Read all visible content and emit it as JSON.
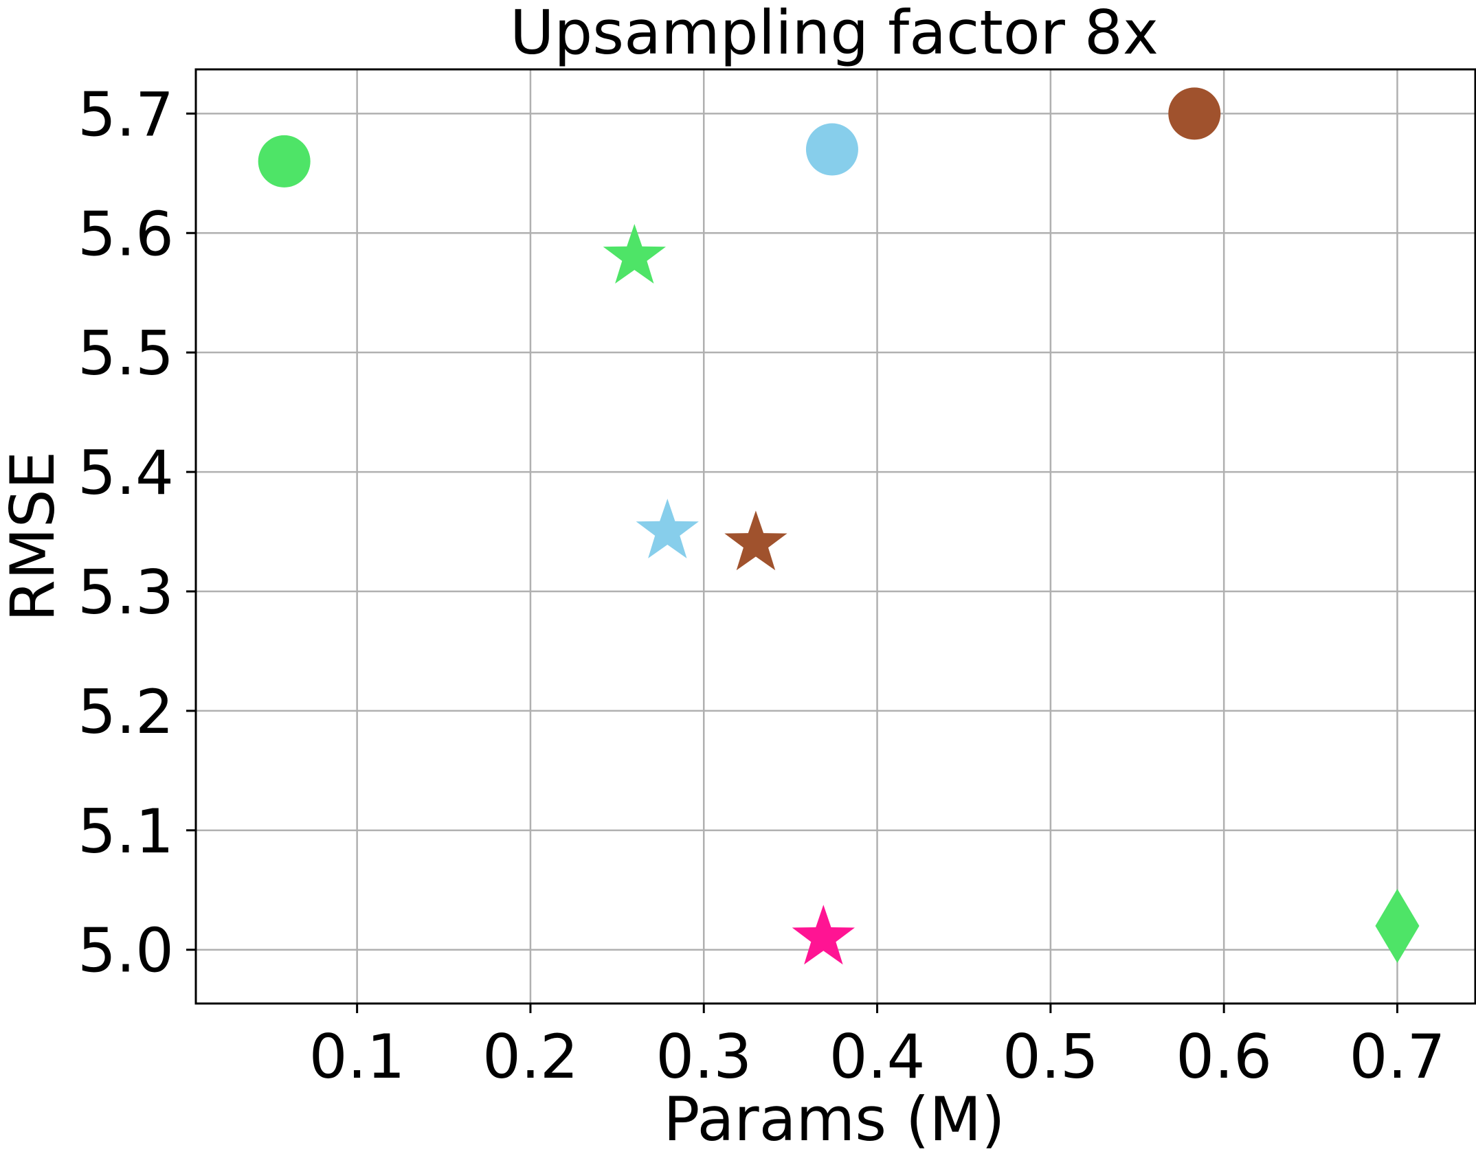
{
  "chart_data": {
    "type": "scatter",
    "title": "Upsampling factor 8x",
    "xlabel": "Params (M)",
    "ylabel": "RMSE",
    "xlim": [
      0.007,
      0.745
    ],
    "ylim": [
      4.955,
      5.737
    ],
    "xticks": [
      0.1,
      0.2,
      0.3,
      0.4,
      0.5,
      0.6,
      0.7
    ],
    "xtick_labels": [
      "0.1",
      "0.2",
      "0.3",
      "0.4",
      "0.5",
      "0.6",
      "0.7"
    ],
    "yticks": [
      5.0,
      5.1,
      5.2,
      5.3,
      5.4,
      5.5,
      5.6,
      5.7
    ],
    "ytick_labels": [
      "5.0",
      "5.1",
      "5.2",
      "5.3",
      "5.4",
      "5.5",
      "5.6",
      "5.7"
    ],
    "grid": true,
    "legend": "none",
    "points": [
      {
        "x": 0.058,
        "y": 5.66,
        "marker": "circle",
        "color": "#4ee467"
      },
      {
        "x": 0.26,
        "y": 5.58,
        "marker": "star",
        "color": "#4ee467"
      },
      {
        "x": 0.374,
        "y": 5.67,
        "marker": "circle",
        "color": "#87ceeb"
      },
      {
        "x": 0.583,
        "y": 5.7,
        "marker": "circle",
        "color": "#a0522d"
      },
      {
        "x": 0.279,
        "y": 5.35,
        "marker": "star",
        "color": "#87ceeb"
      },
      {
        "x": 0.33,
        "y": 5.34,
        "marker": "star",
        "color": "#a0522d"
      },
      {
        "x": 0.369,
        "y": 5.01,
        "marker": "star",
        "color": "#ff1493"
      },
      {
        "x": 0.7,
        "y": 5.02,
        "marker": "diamond",
        "color": "#4ee467"
      }
    ]
  }
}
